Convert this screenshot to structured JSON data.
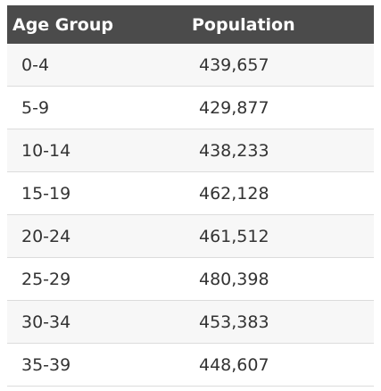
{
  "table": {
    "headers": [
      "Age Group",
      "Population"
    ],
    "rows": [
      {
        "age": "0-4",
        "population": "439,657"
      },
      {
        "age": "5-9",
        "population": "429,877"
      },
      {
        "age": "10-14",
        "population": "438,233"
      },
      {
        "age": "15-19",
        "population": "462,128"
      },
      {
        "age": "20-24",
        "population": "461,512"
      },
      {
        "age": "25-29",
        "population": "480,398"
      },
      {
        "age": "30-34",
        "population": "453,383"
      },
      {
        "age": "35-39",
        "population": "448,607"
      }
    ]
  },
  "colors": {
    "header_bg": "#4b4b4b",
    "header_text": "#ffffff",
    "row_alt_bg": "#f7f7f7",
    "body_text": "#333333",
    "divider": "#dcdcdc"
  }
}
